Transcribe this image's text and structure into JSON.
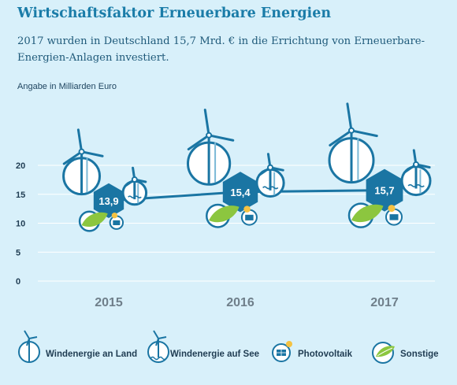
{
  "title": "Wirtschaftsfaktor Erneuerbare Energien",
  "subtitle": "2017 wurden in Deutschland 15,7 Mrd. € in die Errichtung von Erneuerbare-Energien-Anlagen investiert.",
  "unit_label": "Angabe in Milliarden Euro",
  "colors": {
    "accent": "#1a7ca8",
    "hexagon": "#1a75a3",
    "line": "#1a75a3",
    "circle_border": "#1a75a3",
    "leaf": "#8cc63f",
    "sun": "#f5c242",
    "grid": "#ffffff"
  },
  "legend": [
    {
      "icon": "wind-turbine-land-icon",
      "label": "Windenergie an Land"
    },
    {
      "icon": "wind-turbine-sea-icon",
      "label": "Windenergie auf See"
    },
    {
      "icon": "photovoltaic-icon",
      "label": "Photovoltaik"
    },
    {
      "icon": "leaf-icon",
      "label": "Sonstige"
    }
  ],
  "chart_data": {
    "type": "line",
    "categories": [
      "2015",
      "2016",
      "2017"
    ],
    "series": [
      {
        "values": [
          13.9,
          15.4,
          15.7
        ],
        "labels": [
          "13,9",
          "15,4",
          "15,7"
        ]
      }
    ],
    "ylim": [
      0,
      20
    ],
    "yticks": [
      0,
      5,
      10,
      15,
      20
    ],
    "grid": true,
    "legend_position": "bottom"
  }
}
